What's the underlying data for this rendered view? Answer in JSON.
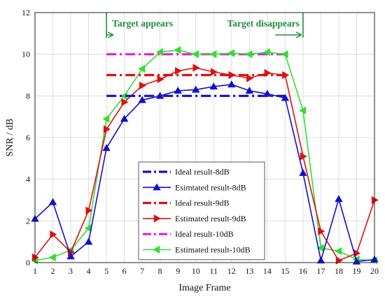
{
  "chart_data": {
    "type": "line",
    "xlabel": "Image Frame",
    "ylabel": "SNR / dB",
    "x": [
      1,
      2,
      3,
      4,
      5,
      6,
      7,
      8,
      9,
      10,
      11,
      12,
      13,
      14,
      15,
      16,
      17,
      18,
      19,
      20
    ],
    "xlim": [
      1,
      20
    ],
    "ylim": [
      0,
      12
    ],
    "xticks": [
      "1",
      "2",
      "3",
      "4",
      "5",
      "6",
      "7",
      "8",
      "9",
      "10",
      "11",
      "12",
      "13",
      "14",
      "15",
      "16",
      "17",
      "18",
      "19",
      "20"
    ],
    "yticks": [
      "0",
      "2",
      "4",
      "6",
      "8",
      "10",
      "12"
    ],
    "grid": true,
    "legend_position": "center-bottom",
    "series": [
      {
        "name": "Ideal result-8dB",
        "style": "dashdot",
        "color": "#1010cc",
        "marker": "none",
        "x": [
          5,
          15
        ],
        "values": [
          8,
          8
        ]
      },
      {
        "name": "Esimtated result-8dB",
        "style": "solid",
        "color": "#1010cc",
        "marker": "triangle-up",
        "values": [
          2.1,
          2.9,
          0.3,
          1.0,
          5.5,
          6.9,
          7.8,
          8.0,
          8.25,
          8.3,
          8.45,
          8.55,
          8.25,
          8.1,
          7.9,
          4.3,
          0.1,
          3.05,
          0.05,
          0.15
        ]
      },
      {
        "name": "Ideal result-9dB",
        "style": "dashdot",
        "color": "#dd1111",
        "marker": "none",
        "x": [
          5,
          15
        ],
        "values": [
          9,
          9
        ]
      },
      {
        "name": "Estimated result-9dB",
        "style": "solid",
        "color": "#dd1111",
        "marker": "triangle-right",
        "values": [
          0.25,
          1.35,
          0.5,
          2.5,
          6.4,
          7.7,
          8.5,
          8.8,
          9.2,
          9.35,
          9.15,
          9.0,
          8.85,
          9.1,
          9.0,
          5.1,
          1.5,
          0.1,
          0.45,
          3.0
        ]
      },
      {
        "name": "Ideal result-10dB",
        "style": "dashdot",
        "color": "#e020e0",
        "marker": "none",
        "x": [
          5,
          15
        ],
        "values": [
          10,
          10
        ]
      },
      {
        "name": "Estimated result-10dB",
        "style": "solid",
        "color": "#33dd33",
        "marker": "triangle-left",
        "values": [
          0.1,
          0.25,
          0.6,
          1.65,
          6.9,
          8.0,
          9.3,
          10.1,
          10.2,
          10.0,
          10.0,
          10.05,
          10.0,
          10.1,
          10.0,
          7.3,
          0.7,
          0.55,
          0.15,
          0.1
        ]
      }
    ],
    "annotations": [
      {
        "text": "Target appears",
        "at_frame": 5,
        "arrow": "right"
      },
      {
        "text": "Target disappears",
        "at_frame": 16,
        "arrow": "right"
      }
    ]
  }
}
